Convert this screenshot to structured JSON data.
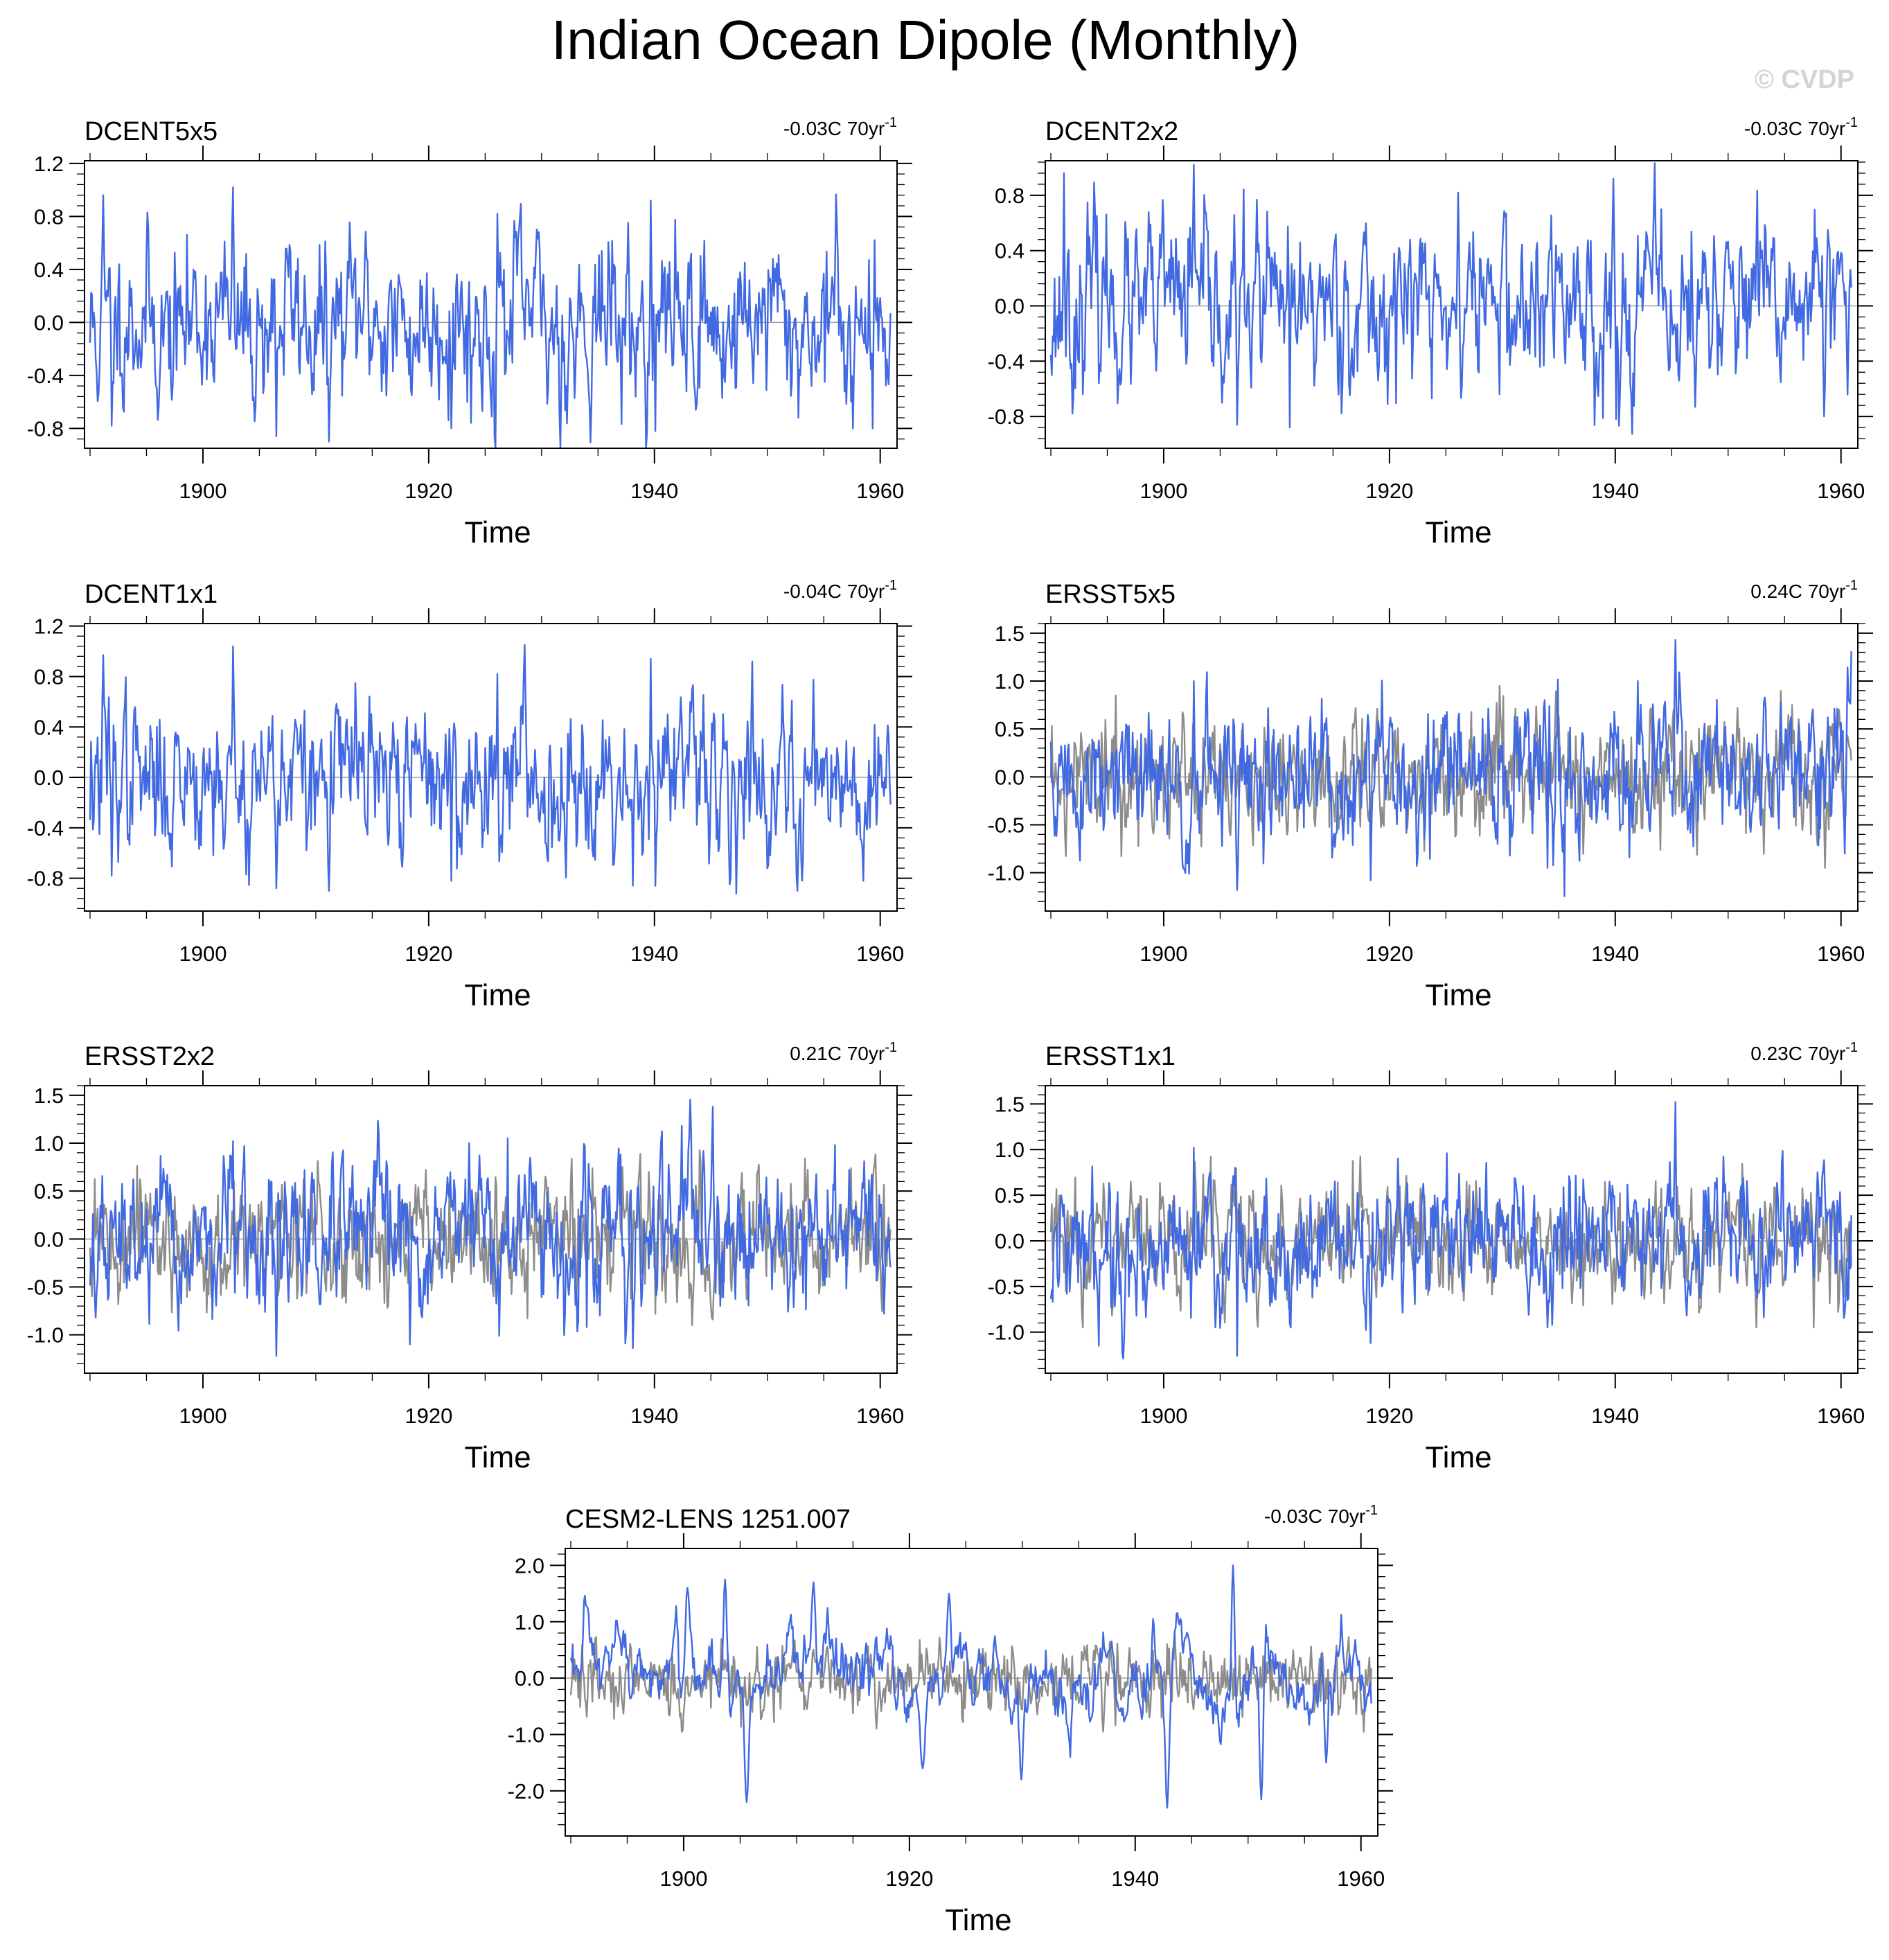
{
  "figure": {
    "title": "Indian Ocean Dipole (Monthly)",
    "watermark": "© CVDP",
    "colors": {
      "primary": "#4169e1",
      "reference": "#8c8c8c",
      "zero_line": "#a0a0a0",
      "frame": "#000000",
      "watermark": "#d4d4d4"
    }
  },
  "chart_data": [
    {
      "type": "line",
      "name": "DCENT5x5",
      "trend_value": "-0.03C 70yr",
      "trend_sup": "-1",
      "xlabel": "Time",
      "xlim": [
        1890,
        1961
      ],
      "xticks": [
        1900,
        1920,
        1940,
        1960
      ],
      "xtick_labels": [
        "1900",
        "1920",
        "1940",
        "1960"
      ],
      "ylim": [
        -0.95,
        1.22
      ],
      "yticks": [
        -0.8,
        -0.4,
        0.0,
        0.4,
        0.8,
        1.2
      ],
      "ytick_labels": [
        "-0.8",
        "-0.4",
        "0.0",
        "0.4",
        "0.8",
        "1.2"
      ],
      "reference_series": false,
      "series": [
        {
          "name": "DCENT5x5 IOD",
          "color": "#4169e1",
          "amplitude": 0.32,
          "seed": 11,
          "peaks": [
            [
              1891.2,
              0.96
            ],
            [
              1902.7,
              1.02
            ],
            [
              1926.1,
              0.82
            ],
            [
              1939.7,
              0.92
            ],
            [
              1891.9,
              -0.78
            ],
            [
              1906.5,
              -0.86
            ],
            [
              1911.2,
              -0.9
            ],
            [
              1922.0,
              -0.8
            ],
            [
              1940.1,
              -0.82
            ],
            [
              1957.6,
              -0.8
            ],
            [
              1959.3,
              -0.8
            ]
          ]
        }
      ]
    },
    {
      "type": "line",
      "name": "DCENT2x2",
      "trend_value": "-0.03C 70yr",
      "trend_sup": "-1",
      "xlabel": "Time",
      "xlim": [
        1890,
        1961
      ],
      "xticks": [
        1900,
        1920,
        1940,
        1960
      ],
      "xtick_labels": [
        "1900",
        "1920",
        "1940",
        "1960"
      ],
      "ylim": [
        -1.03,
        1.05
      ],
      "yticks": [
        -0.8,
        -0.4,
        0.0,
        0.4,
        0.8
      ],
      "ytick_labels": [
        "-0.8",
        "-0.4",
        "0.0",
        "0.4",
        "0.8"
      ],
      "reference_series": false,
      "series": [
        {
          "name": "DCENT2x2 IOD",
          "color": "#4169e1",
          "amplitude": 0.31,
          "seed": 23,
          "peaks": [
            [
              1891.2,
              0.96
            ],
            [
              1902.7,
              1.02
            ],
            [
              1926.1,
              0.82
            ],
            [
              1939.8,
              0.92
            ],
            [
              1891.9,
              -0.78
            ],
            [
              1906.5,
              -0.86
            ],
            [
              1911.2,
              -0.88
            ],
            [
              1940.1,
              -0.82
            ],
            [
              1958.5,
              -0.8
            ]
          ]
        }
      ]
    },
    {
      "type": "line",
      "name": "DCENT1x1",
      "trend_value": "-0.04C 70yr",
      "trend_sup": "-1",
      "xlabel": "Time",
      "xlim": [
        1890,
        1961
      ],
      "xticks": [
        1900,
        1920,
        1940,
        1960
      ],
      "xtick_labels": [
        "1900",
        "1920",
        "1940",
        "1960"
      ],
      "ylim": [
        -1.06,
        1.22
      ],
      "yticks": [
        -0.8,
        -0.4,
        0.0,
        0.4,
        0.8,
        1.2
      ],
      "ytick_labels": [
        "-0.8",
        "-0.4",
        "0.0",
        "0.4",
        "0.8",
        "1.2"
      ],
      "reference_series": false,
      "series": [
        {
          "name": "DCENT1x1 IOD",
          "color": "#4169e1",
          "amplitude": 0.31,
          "seed": 37,
          "peaks": [
            [
              1891.2,
              0.97
            ],
            [
              1902.7,
              1.04
            ],
            [
              1926.1,
              0.82
            ],
            [
              1939.7,
              0.94
            ],
            [
              1891.9,
              -0.78
            ],
            [
              1906.5,
              -0.88
            ],
            [
              1911.2,
              -0.9
            ],
            [
              1922.0,
              -0.82
            ],
            [
              1940.1,
              -0.86
            ],
            [
              1958.5,
              -0.82
            ]
          ]
        }
      ]
    },
    {
      "type": "line",
      "name": "ERSST5x5",
      "trend_value": "0.24C 70yr",
      "trend_sup": "-1",
      "xlabel": "Time",
      "xlim": [
        1890,
        1961
      ],
      "xticks": [
        1900,
        1920,
        1940,
        1960
      ],
      "xtick_labels": [
        "1900",
        "1920",
        "1940",
        "1960"
      ],
      "ylim": [
        -1.4,
        1.6
      ],
      "yticks": [
        -1.0,
        -0.5,
        0.0,
        0.5,
        1.0,
        1.5
      ],
      "ytick_labels": [
        "-1.0",
        "-0.5",
        "0.0",
        "0.5",
        "1.0",
        "1.5"
      ],
      "reference_series": true,
      "series": [
        {
          "name": "ERSST5x5 IOD",
          "color": "#4169e1",
          "amplitude": 0.38,
          "seed": 51,
          "trend": 0.24,
          "peaks": [
            [
              1902.7,
              1.0
            ],
            [
              1945.3,
              1.43
            ],
            [
              1942.0,
              1.0
            ],
            [
              1906.5,
              -1.18
            ],
            [
              1918.3,
              -1.08
            ],
            [
              1934.0,
              -0.95
            ],
            [
              1960.3,
              -0.8
            ]
          ]
        }
      ]
    },
    {
      "type": "line",
      "name": "ERSST2x2",
      "trend_value": "0.21C 70yr",
      "trend_sup": "-1",
      "xlabel": "Time",
      "xlim": [
        1890,
        1961
      ],
      "xticks": [
        1900,
        1920,
        1940,
        1960
      ],
      "xtick_labels": [
        "1900",
        "1920",
        "1940",
        "1960"
      ],
      "ylim": [
        -1.4,
        1.6
      ],
      "yticks": [
        -1.0,
        -0.5,
        0.0,
        0.5,
        1.0,
        1.5
      ],
      "ytick_labels": [
        "-1.0",
        "-0.5",
        "0.0",
        "0.5",
        "1.0",
        "1.5"
      ],
      "reference_series": true,
      "series": [
        {
          "name": "ERSST2x2 IOD",
          "color": "#4169e1",
          "amplitude": 0.37,
          "seed": 67,
          "trend": 0.21,
          "peaks": [
            [
              1902.7,
              1.02
            ],
            [
              1945.2,
              1.38
            ],
            [
              1923.6,
              1.0
            ],
            [
              1906.5,
              -1.22
            ],
            [
              1918.3,
              -1.1
            ],
            [
              1934.0,
              -0.92
            ],
            [
              1960.3,
              -0.78
            ]
          ]
        }
      ]
    },
    {
      "type": "line",
      "name": "ERSST1x1",
      "trend_value": "0.23C 70yr",
      "trend_sup": "-1",
      "xlabel": "Time",
      "xlim": [
        1890,
        1961
      ],
      "xticks": [
        1900,
        1920,
        1940,
        1960
      ],
      "xtick_labels": [
        "1900",
        "1920",
        "1940",
        "1960"
      ],
      "ylim": [
        -1.45,
        1.7
      ],
      "yticks": [
        -1.0,
        -0.5,
        0.0,
        0.5,
        1.0,
        1.5
      ],
      "ytick_labels": [
        "-1.0",
        "-0.5",
        "0.0",
        "0.5",
        "1.0",
        "1.5"
      ],
      "reference_series": true,
      "series": [
        {
          "name": "ERSST1x1 IOD",
          "color": "#4169e1",
          "amplitude": 0.38,
          "seed": 79,
          "trend": 0.23,
          "peaks": [
            [
              1902.7,
              1.02
            ],
            [
              1945.3,
              1.52
            ],
            [
              1925.1,
              0.96
            ],
            [
              1906.5,
              -1.26
            ],
            [
              1918.3,
              -1.12
            ],
            [
              1934.0,
              -0.95
            ],
            [
              1960.3,
              -0.8
            ]
          ]
        }
      ]
    },
    {
      "type": "line",
      "name": "CESM2-LENS 1251.007",
      "trend_value": "-0.03C 70yr",
      "trend_sup": "-1",
      "xlabel": "Time",
      "xlim": [
        1890,
        1961
      ],
      "xticks": [
        1900,
        1920,
        1940,
        1960
      ],
      "xtick_labels": [
        "1900",
        "1920",
        "1940",
        "1960"
      ],
      "ylim": [
        -2.8,
        2.3
      ],
      "yticks": [
        -2.0,
        -1.0,
        0.0,
        1.0,
        2.0
      ],
      "ytick_labels": [
        "-2.0",
        "-1.0",
        "0.0",
        "1.0",
        "2.0"
      ],
      "reference_series": true,
      "series": [
        {
          "name": "CESM2-LENS IOD",
          "color": "#4169e1",
          "amplitude": 0.45,
          "seed": 97,
          "smooth": true,
          "peaks": [
            [
              1900.3,
              1.6
            ],
            [
              1903.7,
              1.75
            ],
            [
              1911.5,
              1.7
            ],
            [
              1923.5,
              1.5
            ],
            [
              1948.7,
              2.0
            ],
            [
              1905.6,
              -2.2
            ],
            [
              1921.2,
              -1.6
            ],
            [
              1942.8,
              -2.3
            ],
            [
              1951.2,
              -2.15
            ],
            [
              1929.9,
              -1.8
            ],
            [
              1956.9,
              -1.5
            ]
          ]
        }
      ]
    }
  ]
}
